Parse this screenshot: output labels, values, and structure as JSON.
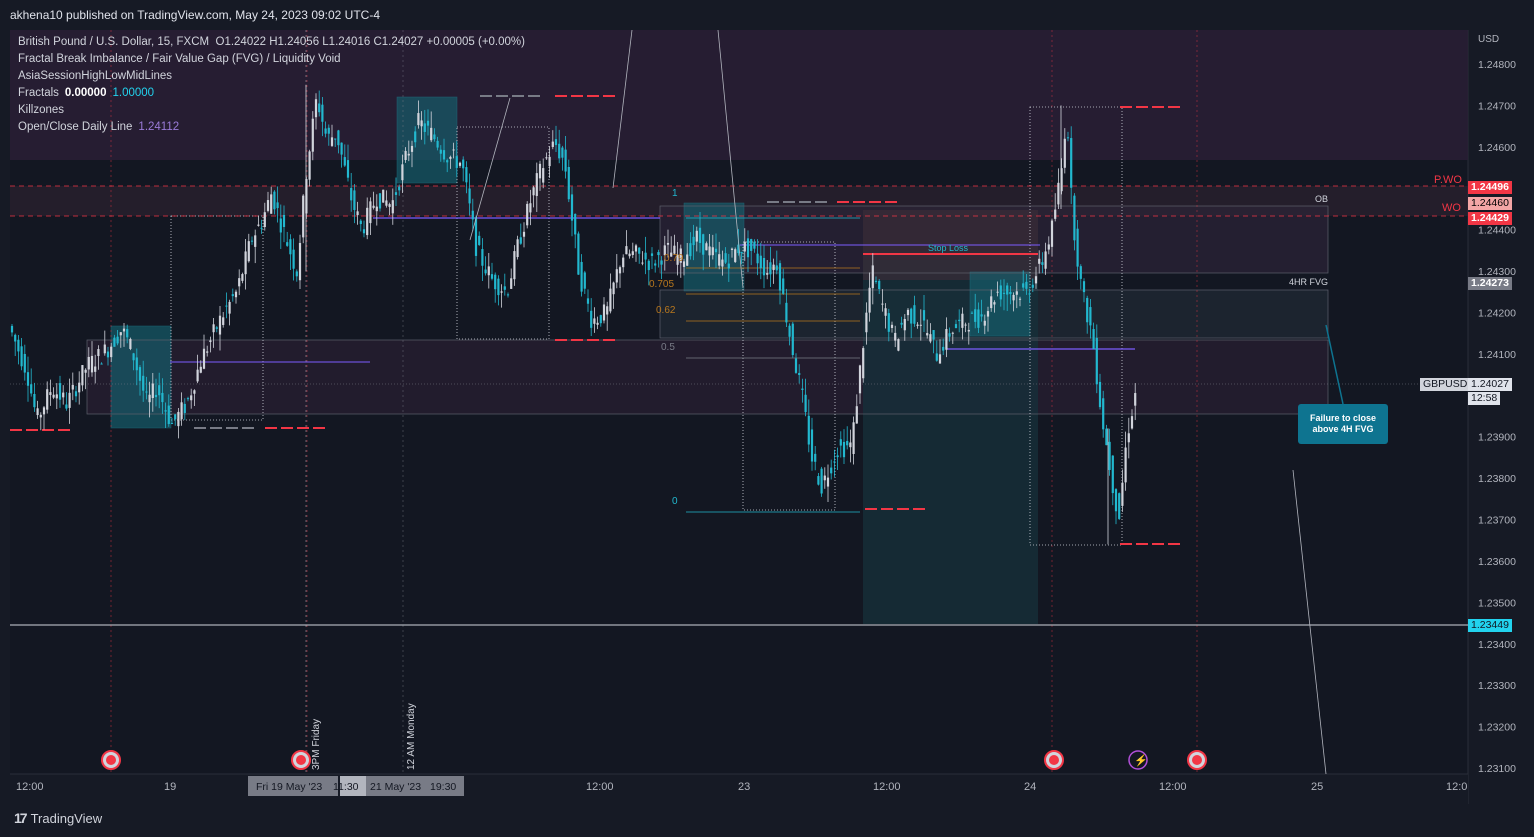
{
  "header": {
    "published": "akhena10 published on TradingView.com, May 24, 2023 09:02 UTC-4"
  },
  "legend": {
    "symbol": "British Pound / U.S. Dollar, 15, FXCM",
    "ohlc": "O1.24022  H1.24056  L1.24016  C1.24027  +0.00005 (+0.00%)",
    "indicator_fvg": "Fractal Break Imbalance / Fair Value Gap (FVG) / Liquidity Void",
    "indicator_asia": "AsiaSessionHighLowMidLines",
    "fractals_label": "Fractals",
    "fractals_v1": "0.00000",
    "fractals_v2": "1.00000",
    "killzones": "Killzones",
    "daily_label": "Open/Close Daily Line",
    "daily_value": "1.24112"
  },
  "axis": {
    "currency": "USD",
    "ticks": [
      "1.24800",
      "1.24700",
      "1.24600",
      "1.24400",
      "1.24300",
      "1.24200",
      "1.24100",
      "1.23900",
      "1.23800",
      "1.23700",
      "1.23600",
      "1.23500",
      "1.23400",
      "1.23300",
      "1.23200",
      "1.23100"
    ],
    "tick_values": [
      1.248,
      1.247,
      1.246,
      1.244,
      1.243,
      1.242,
      1.241,
      1.239,
      1.238,
      1.237,
      1.236,
      1.235,
      1.234,
      1.233,
      1.232,
      1.231
    ],
    "x_ticks": [
      "12:00",
      "19",
      "12:00",
      "23",
      "12:00",
      "24",
      "12:00",
      "25",
      "12:0"
    ],
    "x_highlight_1": "Fri 19 May '23",
    "x_highlight_2": "11:30",
    "x_highlight_3": "21 May '23",
    "x_highlight_4": "19:30"
  },
  "price_tags": {
    "pwo_value": "1.24496",
    "ob_value": "1.24460",
    "wo_value": "1.24429",
    "fvg_value": "1.24273",
    "current_symbol": "GBPUSD",
    "current_value": "1.24027",
    "countdown": "12:58",
    "support_value": "1.23449"
  },
  "labels": {
    "pwo": "P.WO",
    "wo": "WO",
    "ob": "OB",
    "fvg4h": "4HR FVG",
    "stop_loss": "Stop Loss",
    "fib_1": "1",
    "fib_079": "0.79",
    "fib_0705": "0.705",
    "fib_062": "0.62",
    "fib_05": "0.5",
    "fib_0": "0",
    "vtext_1": "3PM Friday",
    "vtext_2": "12 AM Monday",
    "callout": "Failure to close above 4H FVG"
  },
  "brand": {
    "name": "TradingView"
  },
  "colors": {
    "bg": "#161a25",
    "up": "#d1d4dc",
    "down": "#22b8cf",
    "red_level": "#f23645",
    "teal_box": "#0e7490",
    "purple_zone": "#3b2a4a"
  },
  "chart_data": {
    "type": "candlestick",
    "symbol": "GBPUSD",
    "ylim": [
      1.2309,
      1.249
    ],
    "x_ticks": [
      "12:00",
      "19",
      "12:00",
      "23",
      "12:00",
      "24",
      "12:00",
      "25",
      "12:0"
    ],
    "levels": [
      {
        "name": "P.WO",
        "value": 1.24496
      },
      {
        "name": "WO",
        "value": 1.24429
      },
      {
        "name": "OB",
        "value": 1.2446
      },
      {
        "name": "4HR FVG",
        "value": 1.24273
      },
      {
        "name": "GBPUSD",
        "value": 1.24027
      },
      {
        "name": "support",
        "value": 1.23449
      }
    ],
    "path": [
      [
        0,
        1.2418
      ],
      [
        20,
        1.2406
      ],
      [
        30,
        1.2394
      ],
      [
        45,
        1.2402
      ],
      [
        60,
        1.2398
      ],
      [
        80,
        1.2407
      ],
      [
        100,
        1.2411
      ],
      [
        115,
        1.2416
      ],
      [
        125,
        1.2411
      ],
      [
        140,
        1.2398
      ],
      [
        150,
        1.2402
      ],
      [
        165,
        1.2393
      ],
      [
        180,
        1.2398
      ],
      [
        195,
        1.2409
      ],
      [
        215,
        1.2419
      ],
      [
        230,
        1.2425
      ],
      [
        245,
        1.2438
      ],
      [
        255,
        1.2442
      ],
      [
        265,
        1.2449
      ],
      [
        275,
        1.2441
      ],
      [
        290,
        1.243
      ],
      [
        300,
        1.2455
      ],
      [
        310,
        1.2472
      ],
      [
        320,
        1.2462
      ],
      [
        330,
        1.2463
      ],
      [
        345,
        1.2447
      ],
      [
        355,
        1.244
      ],
      [
        370,
        1.2448
      ],
      [
        385,
        1.2446
      ],
      [
        400,
        1.2458
      ],
      [
        412,
        1.2466
      ],
      [
        425,
        1.2463
      ],
      [
        440,
        1.2458
      ],
      [
        455,
        1.2456
      ],
      [
        470,
        1.2435
      ],
      [
        485,
        1.2428
      ],
      [
        500,
        1.2425
      ],
      [
        512,
        1.2437
      ],
      [
        525,
        1.2448
      ],
      [
        535,
        1.2455
      ],
      [
        548,
        1.2461
      ],
      [
        558,
        1.2456
      ],
      [
        572,
        1.243
      ],
      [
        585,
        1.2418
      ],
      [
        600,
        1.242
      ],
      [
        615,
        1.2434
      ],
      [
        630,
        1.2434
      ],
      [
        645,
        1.2432
      ],
      [
        660,
        1.2435
      ],
      [
        675,
        1.2433
      ],
      [
        690,
        1.2438
      ],
      [
        705,
        1.2434
      ],
      [
        718,
        1.2432
      ],
      [
        733,
        1.2436
      ],
      [
        745,
        1.2435
      ],
      [
        760,
        1.243
      ],
      [
        770,
        1.2432
      ],
      [
        785,
        1.2412
      ],
      [
        795,
        1.24
      ],
      [
        805,
        1.2385
      ],
      [
        815,
        1.2378
      ],
      [
        830,
        1.2387
      ],
      [
        845,
        1.2388
      ],
      [
        855,
        1.241
      ],
      [
        865,
        1.243
      ],
      [
        875,
        1.2422
      ],
      [
        888,
        1.2413
      ],
      [
        900,
        1.242
      ],
      [
        915,
        1.2418
      ],
      [
        930,
        1.241
      ],
      [
        945,
        1.2416
      ],
      [
        960,
        1.2418
      ],
      [
        975,
        1.2419
      ],
      [
        990,
        1.2425
      ],
      [
        1005,
        1.2425
      ],
      [
        1020,
        1.2425
      ],
      [
        1035,
        1.2432
      ],
      [
        1045,
        1.244
      ],
      [
        1055,
        1.2455
      ],
      [
        1060,
        1.247
      ],
      [
        1065,
        1.2445
      ],
      [
        1075,
        1.2425
      ],
      [
        1085,
        1.2415
      ],
      [
        1095,
        1.2395
      ],
      [
        1105,
        1.238
      ],
      [
        1112,
        1.237
      ],
      [
        1120,
        1.239
      ],
      [
        1128,
        1.24
      ],
      [
        1135,
        1.2403
      ]
    ]
  }
}
